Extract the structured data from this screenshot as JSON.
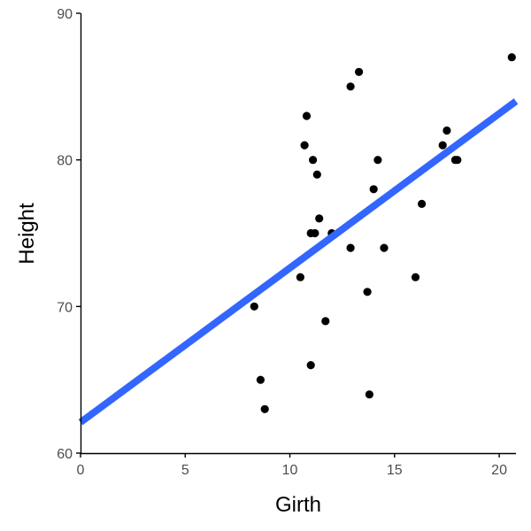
{
  "chart_data": {
    "type": "scatter",
    "xlabel": "Girth",
    "ylabel": "Height",
    "xlim": [
      0,
      20.8
    ],
    "ylim": [
      60,
      90
    ],
    "x_ticks": [
      0,
      5,
      10,
      15,
      20
    ],
    "y_ticks": [
      60,
      70,
      80,
      90
    ],
    "grid": false,
    "colors": {
      "points": "#000000",
      "line": "#3366ff",
      "axis": "#000000"
    },
    "points": [
      {
        "x": 8.3,
        "y": 70
      },
      {
        "x": 8.6,
        "y": 65
      },
      {
        "x": 8.8,
        "y": 63
      },
      {
        "x": 10.5,
        "y": 72
      },
      {
        "x": 10.7,
        "y": 81
      },
      {
        "x": 10.8,
        "y": 83
      },
      {
        "x": 11.0,
        "y": 66
      },
      {
        "x": 11.0,
        "y": 75
      },
      {
        "x": 11.1,
        "y": 80
      },
      {
        "x": 11.2,
        "y": 75
      },
      {
        "x": 11.3,
        "y": 79
      },
      {
        "x": 11.4,
        "y": 76
      },
      {
        "x": 11.7,
        "y": 69
      },
      {
        "x": 12.0,
        "y": 75
      },
      {
        "x": 12.9,
        "y": 74
      },
      {
        "x": 12.9,
        "y": 85
      },
      {
        "x": 13.3,
        "y": 86
      },
      {
        "x": 13.7,
        "y": 71
      },
      {
        "x": 13.8,
        "y": 64
      },
      {
        "x": 14.0,
        "y": 78
      },
      {
        "x": 14.2,
        "y": 80
      },
      {
        "x": 14.5,
        "y": 74
      },
      {
        "x": 16.0,
        "y": 72
      },
      {
        "x": 16.3,
        "y": 77
      },
      {
        "x": 17.3,
        "y": 81
      },
      {
        "x": 17.5,
        "y": 82
      },
      {
        "x": 17.9,
        "y": 80
      },
      {
        "x": 18.0,
        "y": 80
      },
      {
        "x": 20.6,
        "y": 87
      }
    ],
    "regression_line": {
      "x": [
        0,
        20.8
      ],
      "y": [
        62.1,
        84.0
      ]
    }
  }
}
